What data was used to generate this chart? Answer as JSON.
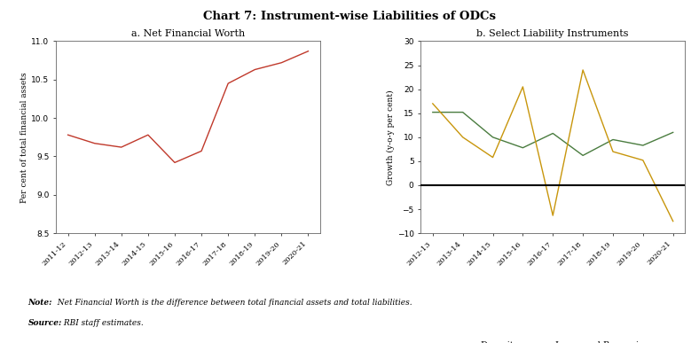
{
  "title": "Chart 7: Instrument-wise Liabilities of ODCs",
  "panel_a": {
    "title": "a. Net Financial Worth",
    "ylabel": "Per cent of total financial assets",
    "x_labels": [
      "2011-12",
      "2012-13",
      "2013-14",
      "2014-15",
      "2015-16",
      "2016-17",
      "2017-18",
      "2018-19",
      "2019-20",
      "2020-21"
    ],
    "y_values": [
      9.78,
      9.67,
      9.62,
      9.78,
      9.42,
      9.57,
      10.45,
      10.63,
      10.72,
      10.87
    ],
    "ylim": [
      8.5,
      11.0
    ],
    "yticks": [
      8.5,
      9.0,
      9.5,
      10.0,
      10.5,
      11.0
    ],
    "line_color": "#c0392b"
  },
  "panel_b": {
    "title": "b. Select Liability Instruments",
    "ylabel": "Growth (y-o-y per cent)",
    "x_labels": [
      "2012-13",
      "2013-14",
      "2014-15",
      "2015-16",
      "2016-17",
      "2017-18",
      "2018-19",
      "2019-20",
      "2020-21"
    ],
    "deposits": [
      15.2,
      15.2,
      10.0,
      7.8,
      10.8,
      6.2,
      9.5,
      8.3,
      11.0
    ],
    "loans_borrowings": [
      17.0,
      10.0,
      5.8,
      20.5,
      -6.3,
      24.0,
      7.0,
      5.2,
      -7.5
    ],
    "ylim": [
      -10,
      30
    ],
    "yticks": [
      -10,
      -5,
      0,
      5,
      10,
      15,
      20,
      25,
      30
    ],
    "deposits_color": "#4a7c3f",
    "loans_color": "#c8960c"
  },
  "note_bold": "Note:",
  "note_text": "  Net Financial Worth is the difference between total financial assets and total liabilities.",
  "source_bold": "Source:",
  "source_text": " RBI staff estimates.",
  "background_color": "#ffffff"
}
